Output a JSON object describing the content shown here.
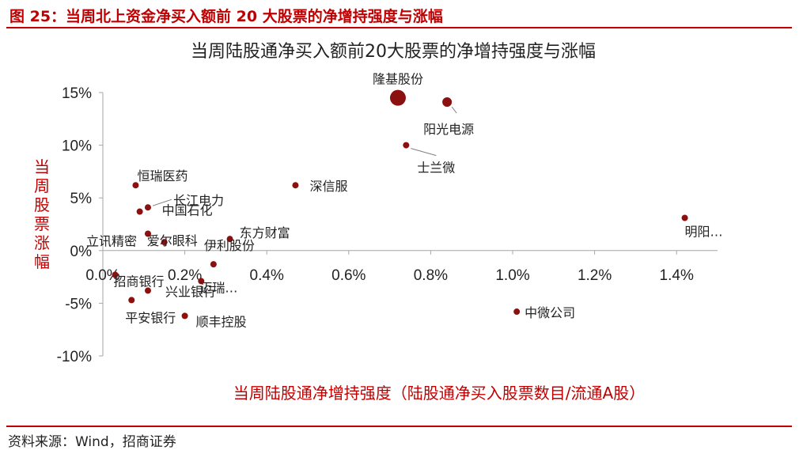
{
  "figure_title": "图 25：当周北上资金净买入额前 20 大股票的净增持强度与涨幅",
  "source": "资料来源：Wind，招商证券",
  "colors": {
    "accent": "#c00000",
    "marker": "#8b1010",
    "axis": "#a6a6a6",
    "text": "#222222"
  },
  "chart_data": {
    "type": "scatter",
    "title": "当周陆股通净买入额前20大股票的净增持强度与涨幅",
    "xlabel": "当周陆股通净增持强度（陆股通净买入股票数目/流通A股）",
    "ylabel": "当周股票涨幅",
    "xlim": [
      0,
      1.5
    ],
    "ylim": [
      -10,
      15
    ],
    "x_ticks": [
      0,
      0.2,
      0.4,
      0.6,
      0.8,
      1.0,
      1.2,
      1.4
    ],
    "x_tick_labels": [
      "0.0%",
      "0.2%",
      "0.4%",
      "0.6%",
      "0.8%",
      "1.0%",
      "1.2%",
      "1.4%"
    ],
    "y_ticks": [
      15,
      10,
      5,
      0,
      -5,
      -10
    ],
    "y_tick_labels": [
      "15%",
      "10%",
      "5%",
      "0%",
      "-5%",
      "-10%"
    ],
    "grid": false,
    "points": [
      {
        "label": "隆基股份",
        "x": 0.72,
        "y": 14.5,
        "big": true
      },
      {
        "label": "阳光电源",
        "x": 0.84,
        "y": 14.1
      },
      {
        "label": "士兰微",
        "x": 0.74,
        "y": 10.0
      },
      {
        "label": "深信服",
        "x": 0.47,
        "y": 6.2
      },
      {
        "label": "恒瑞医药",
        "x": 0.08,
        "y": 6.2
      },
      {
        "label": "长江电力",
        "x": 0.11,
        "y": 4.1
      },
      {
        "label": "中国石化",
        "x": 0.09,
        "y": 3.7
      },
      {
        "label": "立讯精密",
        "x": 0.11,
        "y": 1.6
      },
      {
        "label": "爱尔眼科",
        "x": 0.15,
        "y": 0.8
      },
      {
        "label": "东方财富",
        "x": 0.31,
        "y": 1.1
      },
      {
        "label": "伊利股份",
        "x": 0.27,
        "y": -1.3
      },
      {
        "label": "招商银行",
        "x": 0.03,
        "y": -2.3
      },
      {
        "label": "迈瑞…",
        "x": 0.24,
        "y": -2.9
      },
      {
        "label": "兴业银行",
        "x": 0.11,
        "y": -3.8
      },
      {
        "label": "平安银行",
        "x": 0.07,
        "y": -4.7
      },
      {
        "label": "顺丰控股",
        "x": 0.2,
        "y": -6.2
      },
      {
        "label": "明阳…",
        "x": 1.42,
        "y": 3.1
      },
      {
        "label": "中微公司",
        "x": 1.01,
        "y": -5.8
      }
    ]
  }
}
